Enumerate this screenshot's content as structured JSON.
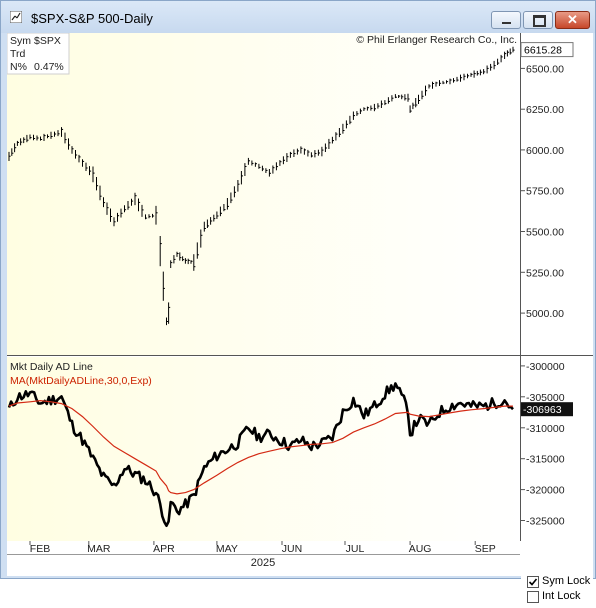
{
  "window": {
    "title": "$SPX-S&P 500-Daily"
  },
  "colors": {
    "background": "#fffee2",
    "price": "#000000",
    "ad_line": "#000000",
    "ma_line": "#d42a14",
    "label_text": "#333333",
    "title_red": "#cc2200"
  },
  "info_box": {
    "sym_label": "Sym",
    "sym_value": "$SPX",
    "trd_label": "Trd",
    "n_label": "N%",
    "n_value": "0.47%"
  },
  "copyright": "© Phil Erlanger Research Co., Inc.",
  "ad_panel": {
    "title": "Mkt Daily AD Line",
    "ma_label": "MA(MktDailyADLine,30,0,Exp)"
  },
  "x_axis": {
    "months": [
      "FEB",
      "MAR",
      "APR",
      "MAY",
      "JUN",
      "JUL",
      "AUG",
      "SEP"
    ],
    "year": "2025"
  },
  "checkboxes": {
    "sym_lock": {
      "label": "Sym Lock",
      "checked": true
    },
    "int_lock": {
      "label": "Int Lock",
      "checked": false
    }
  },
  "chart_data": [
    {
      "type": "line",
      "title": "$SPX-S&P 500-Daily",
      "ylim": [
        4780,
        6680
      ],
      "yticks": [
        "5000.00",
        "5250.00",
        "5500.00",
        "5750.00",
        "6000.00",
        "6250.00",
        "6500.00"
      ],
      "last_value": "6615.28",
      "x": [
        "Jan-22",
        "Jan-26",
        "Feb-01",
        "Feb-06",
        "Feb-11",
        "Feb-16",
        "Feb-21",
        "Feb-26",
        "Mar-03",
        "Mar-08",
        "Mar-13",
        "Mar-18",
        "Mar-23",
        "Mar-28",
        "Apr-02",
        "Apr-04",
        "Apr-07",
        "Apr-08",
        "Apr-09",
        "Apr-12",
        "Apr-16",
        "Apr-20",
        "Apr-25",
        "May-01",
        "May-06",
        "May-11",
        "May-16",
        "May-21",
        "May-26",
        "May-31",
        "Jun-05",
        "Jun-10",
        "Jun-15",
        "Jun-20",
        "Jun-25",
        "Jun-30",
        "Jul-05",
        "Jul-10",
        "Jul-15",
        "Jul-20",
        "Jul-25",
        "Jul-31",
        "Aug-01",
        "Aug-05",
        "Aug-10",
        "Aug-15",
        "Aug-20",
        "Aug-25",
        "Aug-30",
        "Sep-05",
        "Sep-10",
        "Sep-15",
        "Sep-19"
      ],
      "series": [
        {
          "values": [
            5960,
            6040,
            6080,
            6070,
            6090,
            6110,
            6000,
            5920,
            5850,
            5680,
            5560,
            5640,
            5700,
            5590,
            5600,
            5380,
            4950,
            5000,
            5300,
            5360,
            5320,
            5310,
            5530,
            5600,
            5670,
            5780,
            5930,
            5900,
            5860,
            5920,
            5970,
            6000,
            5970,
            5990,
            6060,
            6130,
            6210,
            6250,
            6260,
            6290,
            6330,
            6320,
            6250,
            6310,
            6390,
            6410,
            6420,
            6440,
            6460,
            6480,
            6520,
            6580,
            6615
          ]
        }
      ]
    },
    {
      "type": "line",
      "title": "Mkt Daily AD Line",
      "ylim": [
        -328000,
        -299200
      ],
      "yticks": [
        "-325000",
        "-320000",
        "-315000",
        "-310000",
        "-305000",
        "-300000"
      ],
      "last_value": "-306963",
      "x": [
        "Jan-22",
        "Jan-26",
        "Feb-01",
        "Feb-06",
        "Feb-11",
        "Feb-16",
        "Feb-21",
        "Feb-26",
        "Mar-03",
        "Mar-08",
        "Mar-13",
        "Mar-18",
        "Mar-23",
        "Mar-28",
        "Apr-02",
        "Apr-04",
        "Apr-07",
        "Apr-08",
        "Apr-09",
        "Apr-12",
        "Apr-16",
        "Apr-20",
        "Apr-25",
        "May-01",
        "May-06",
        "May-11",
        "May-16",
        "May-21",
        "May-26",
        "May-31",
        "Jun-05",
        "Jun-10",
        "Jun-15",
        "Jun-20",
        "Jun-25",
        "Jun-30",
        "Jul-05",
        "Jul-10",
        "Jul-15",
        "Jul-20",
        "Jul-25",
        "Jul-31",
        "Aug-01",
        "Aug-05",
        "Aug-10",
        "Aug-15",
        "Aug-20",
        "Aug-25",
        "Aug-30",
        "Sep-05",
        "Sep-10",
        "Sep-15",
        "Sep-19"
      ],
      "series": [
        {
          "name": "Mkt Daily AD Line",
          "values": [
            -307000,
            -305000,
            -304500,
            -306000,
            -305500,
            -305000,
            -309500,
            -312000,
            -315000,
            -318000,
            -319500,
            -316500,
            -317500,
            -318500,
            -320500,
            -322500,
            -325500,
            -326000,
            -322000,
            -323500,
            -322500,
            -321000,
            -316500,
            -314500,
            -313500,
            -312500,
            -310000,
            -311500,
            -311000,
            -312000,
            -313000,
            -312000,
            -313000,
            -312500,
            -311500,
            -307500,
            -305500,
            -308000,
            -306500,
            -304500,
            -303000,
            -307000,
            -311000,
            -308500,
            -309500,
            -307500,
            -306500,
            -306000,
            -306500,
            -306500,
            -306000,
            -305500,
            -307000
          ]
        },
        {
          "name": "MA(MktDailyADLine,30,0,Exp)",
          "values": [
            -306500,
            -306000,
            -305800,
            -305600,
            -305800,
            -306100,
            -306900,
            -308200,
            -309800,
            -311500,
            -313000,
            -314000,
            -315000,
            -316000,
            -317000,
            -318200,
            -319400,
            -320200,
            -320500,
            -320700,
            -320500,
            -320000,
            -318900,
            -317700,
            -316600,
            -315600,
            -314800,
            -314200,
            -313800,
            -313400,
            -313100,
            -312900,
            -312700,
            -312600,
            -312400,
            -311700,
            -310700,
            -310000,
            -309400,
            -308600,
            -307700,
            -307500,
            -307800,
            -308100,
            -308200,
            -307900,
            -307600,
            -307300,
            -307100,
            -306900,
            -306700,
            -306500,
            -306500
          ]
        }
      ]
    }
  ]
}
